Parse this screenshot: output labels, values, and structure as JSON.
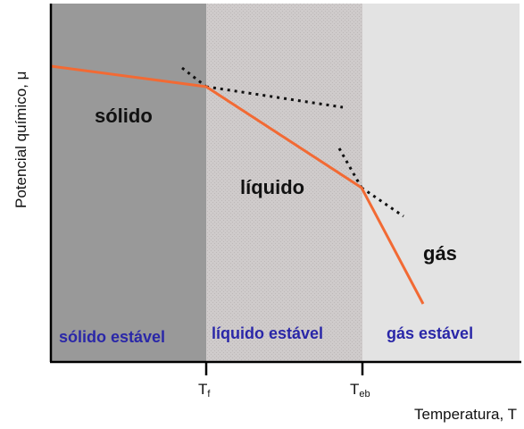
{
  "axes": {
    "y_label": "Potencial químico, μ",
    "x_label": "Temperatura, T",
    "ticks": [
      {
        "main": "T",
        "sub": "f"
      },
      {
        "main": "T",
        "sub": "eb"
      }
    ]
  },
  "regions": [
    {
      "name": "sólido",
      "stable_label": "sólido estável",
      "color": "#999999"
    },
    {
      "name": "líquido",
      "stable_label": "líquido estável",
      "color": "#cfcbcb"
    },
    {
      "name": "gás",
      "stable_label": "gás estável",
      "color": "#e3e3e3"
    }
  ],
  "colors": {
    "curve": "#f26a34",
    "stable_text": "#2a27a8",
    "axis": "#000000"
  }
}
